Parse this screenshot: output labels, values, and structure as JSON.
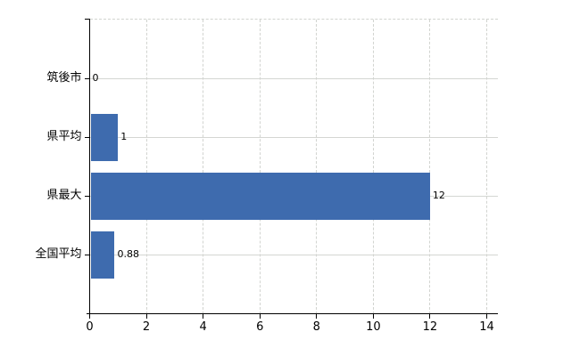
{
  "chart_data": {
    "type": "bar",
    "orientation": "horizontal",
    "title": "",
    "categories": [
      "筑後市",
      "県平均",
      "県最大",
      "全国平均"
    ],
    "values": [
      0,
      1,
      12,
      0.88
    ],
    "value_labels": [
      "0",
      "1",
      "12",
      "0.88"
    ],
    "x_ticks": [
      0,
      2,
      4,
      6,
      8,
      10,
      12,
      14
    ],
    "xlim": [
      0,
      14
    ],
    "ylabel": "",
    "xlabel": "",
    "grid": true,
    "legend": "none",
    "colors": {
      "bar": "#3e6bae",
      "gridline": "#d4d6d2",
      "axis": "#000000",
      "text": "#000000",
      "background": "#ffffff"
    }
  }
}
